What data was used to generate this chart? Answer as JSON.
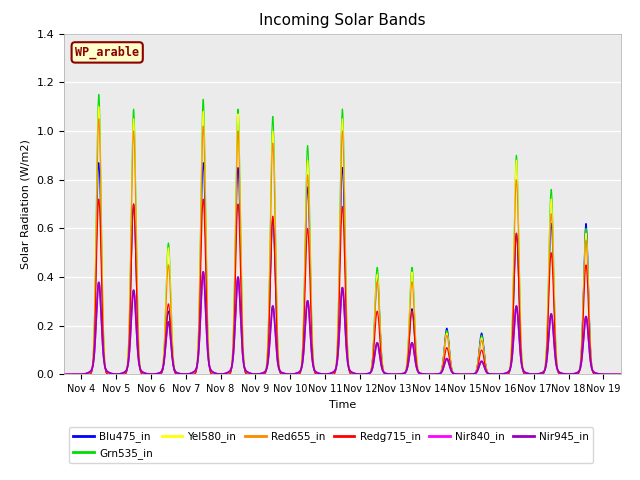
{
  "title": "Incoming Solar Bands",
  "ylabel": "Solar Radiation (W/m2)",
  "xlabel": "Time",
  "ylim": [
    0,
    1.4
  ],
  "yticks": [
    0.0,
    0.2,
    0.4,
    0.6,
    0.8,
    1.0,
    1.2,
    1.4
  ],
  "xtick_positions": [
    0,
    1,
    2,
    3,
    4,
    5,
    6,
    7,
    8,
    9,
    10,
    11,
    12,
    13,
    14,
    15
  ],
  "xtick_labels": [
    "Nov 4",
    "Nov 5",
    "Nov 6",
    "Nov 7",
    "Nov 8",
    "Nov 9",
    "Nov 10",
    "Nov 11",
    "Nov 12",
    "Nov 13",
    "Nov 14",
    "Nov 15",
    "Nov 16",
    "Nov 17",
    "Nov 18",
    "Nov 19"
  ],
  "background_color": "#ebebeb",
  "legend_box_color": "#ffffcc",
  "legend_box_edge": "#8b0000",
  "legend_text": "WP_arable",
  "series_order": [
    "Blu475_in",
    "Grn535_in",
    "Yel580_in",
    "Red655_in",
    "Redg715_in",
    "Nir840_in",
    "Nir945_in"
  ],
  "series": {
    "Blu475_in": {
      "color": "#0000ff",
      "lw": 0.8
    },
    "Grn535_in": {
      "color": "#00dd00",
      "lw": 0.8
    },
    "Yel580_in": {
      "color": "#ffff00",
      "lw": 0.8
    },
    "Red655_in": {
      "color": "#ff8800",
      "lw": 0.8
    },
    "Redg715_in": {
      "color": "#ff0000",
      "lw": 0.8
    },
    "Nir840_in": {
      "color": "#ff00ff",
      "lw": 1.2
    },
    "Nir945_in": {
      "color": "#9900bb",
      "lw": 1.2
    }
  },
  "peaks": [
    {
      "day": 0.5,
      "heights": [
        0.87,
        1.15,
        1.1,
        1.05,
        0.72,
        0.35,
        0.35
      ]
    },
    {
      "day": 1.5,
      "heights": [
        0.7,
        1.09,
        1.05,
        1.0,
        0.7,
        0.32,
        0.32
      ]
    },
    {
      "day": 2.5,
      "heights": [
        0.26,
        0.54,
        0.52,
        0.45,
        0.29,
        0.2,
        0.2
      ]
    },
    {
      "day": 3.5,
      "heights": [
        0.87,
        1.13,
        1.08,
        1.02,
        0.72,
        0.39,
        0.39
      ]
    },
    {
      "day": 4.5,
      "heights": [
        0.85,
        1.09,
        1.07,
        1.0,
        0.7,
        0.37,
        0.37
      ]
    },
    {
      "day": 5.5,
      "heights": [
        0.64,
        1.06,
        1.0,
        0.95,
        0.65,
        0.26,
        0.26
      ]
    },
    {
      "day": 6.5,
      "heights": [
        0.77,
        0.94,
        0.88,
        0.82,
        0.6,
        0.28,
        0.28
      ]
    },
    {
      "day": 7.5,
      "heights": [
        0.85,
        1.09,
        1.05,
        1.0,
        0.69,
        0.33,
        0.33
      ]
    },
    {
      "day": 8.5,
      "heights": [
        0.4,
        0.44,
        0.41,
        0.38,
        0.26,
        0.12,
        0.12
      ]
    },
    {
      "day": 9.5,
      "heights": [
        0.27,
        0.44,
        0.42,
        0.38,
        0.26,
        0.12,
        0.12
      ]
    },
    {
      "day": 10.5,
      "heights": [
        0.19,
        0.18,
        0.17,
        0.16,
        0.11,
        0.06,
        0.06
      ]
    },
    {
      "day": 11.5,
      "heights": [
        0.17,
        0.16,
        0.15,
        0.14,
        0.1,
        0.05,
        0.05
      ]
    },
    {
      "day": 12.5,
      "heights": [
        0.58,
        0.9,
        0.88,
        0.8,
        0.58,
        0.26,
        0.26
      ]
    },
    {
      "day": 13.5,
      "heights": [
        0.62,
        0.76,
        0.72,
        0.66,
        0.5,
        0.23,
        0.23
      ]
    },
    {
      "day": 14.5,
      "heights": [
        0.62,
        0.6,
        0.58,
        0.55,
        0.45,
        0.22,
        0.22
      ]
    }
  ],
  "sigma_sharp": 0.07,
  "sigma_wide": 0.18
}
